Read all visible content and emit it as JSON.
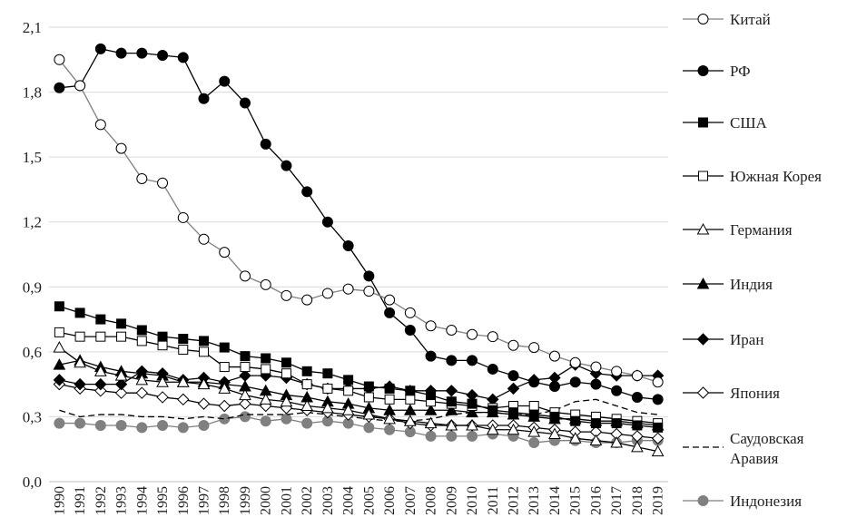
{
  "chart_data": {
    "type": "line",
    "title": "",
    "xlabel": "",
    "ylabel": "",
    "ylim": [
      0,
      2.1
    ],
    "yticks": [
      "0,0",
      "0,3",
      "0,6",
      "0,9",
      "1,2",
      "1,5",
      "1,8",
      "2,1"
    ],
    "grid": "horizontal",
    "legend": "right",
    "categories": [
      "1990",
      "1991",
      "1992",
      "1993",
      "1994",
      "1995",
      "1996",
      "1997",
      "1998",
      "1999",
      "2000",
      "2001",
      "2002",
      "2003",
      "2004",
      "2005",
      "2006",
      "2007",
      "2008",
      "2009",
      "2010",
      "2011",
      "2012",
      "2013",
      "2014",
      "2015",
      "2016",
      "2017",
      "2018",
      "2019"
    ],
    "series": [
      {
        "name": "Китай",
        "marker": "circle",
        "fill": "#ffffff",
        "stroke": "#000000",
        "line": "#808080",
        "dash": "",
        "values": [
          1.95,
          1.83,
          1.65,
          1.54,
          1.4,
          1.38,
          1.22,
          1.12,
          1.06,
          0.95,
          0.91,
          0.86,
          0.84,
          0.87,
          0.89,
          0.88,
          0.84,
          0.78,
          0.72,
          0.7,
          0.68,
          0.67,
          0.63,
          0.62,
          0.58,
          0.55,
          0.53,
          0.51,
          0.49,
          0.46
        ]
      },
      {
        "name": "РФ",
        "marker": "circle",
        "fill": "#000000",
        "stroke": "#000000",
        "line": "#000000",
        "dash": "",
        "values": [
          1.82,
          1.83,
          2.0,
          1.98,
          1.98,
          1.97,
          1.96,
          1.77,
          1.85,
          1.75,
          1.56,
          1.46,
          1.34,
          1.2,
          1.09,
          0.95,
          0.78,
          0.7,
          0.58,
          0.56,
          0.56,
          0.52,
          0.49,
          0.46,
          0.44,
          0.46,
          0.45,
          0.42,
          0.39,
          0.38
        ]
      },
      {
        "name": "США",
        "marker": "square",
        "fill": "#000000",
        "stroke": "#000000",
        "line": "#000000",
        "dash": "",
        "values": [
          0.81,
          0.78,
          0.75,
          0.73,
          0.7,
          0.67,
          0.66,
          0.65,
          0.62,
          0.58,
          0.57,
          0.55,
          0.51,
          0.5,
          0.47,
          0.44,
          0.43,
          0.42,
          0.4,
          0.37,
          0.36,
          0.33,
          0.32,
          0.31,
          0.3,
          0.28,
          0.27,
          0.27,
          0.26,
          0.25
        ]
      },
      {
        "name": "Южная Корея",
        "marker": "square",
        "fill": "#ffffff",
        "stroke": "#000000",
        "line": "#000000",
        "dash": "",
        "values": [
          0.69,
          0.67,
          0.67,
          0.67,
          0.65,
          0.63,
          0.61,
          0.6,
          0.53,
          0.53,
          0.52,
          0.5,
          0.45,
          0.43,
          0.42,
          0.39,
          0.38,
          0.38,
          0.37,
          0.36,
          0.35,
          0.34,
          0.35,
          0.35,
          0.32,
          0.31,
          0.3,
          0.29,
          0.28,
          0.27
        ]
      },
      {
        "name": "Германия",
        "marker": "triangle",
        "fill": "#ffffff",
        "stroke": "#000000",
        "line": "#000000",
        "dash": "",
        "values": [
          0.62,
          0.55,
          0.51,
          0.49,
          0.47,
          0.46,
          0.46,
          0.45,
          0.43,
          0.4,
          0.38,
          0.37,
          0.35,
          0.34,
          0.33,
          0.31,
          0.29,
          0.28,
          0.27,
          0.26,
          0.26,
          0.24,
          0.24,
          0.23,
          0.22,
          0.2,
          0.19,
          0.18,
          0.16,
          0.14
        ]
      },
      {
        "name": "Индия",
        "marker": "triangle",
        "fill": "#000000",
        "stroke": "#000000",
        "line": "#000000",
        "dash": "",
        "values": [
          0.54,
          0.56,
          0.53,
          0.51,
          0.5,
          0.49,
          0.46,
          0.46,
          0.45,
          0.44,
          0.42,
          0.4,
          0.39,
          0.37,
          0.36,
          0.34,
          0.33,
          0.33,
          0.33,
          0.33,
          0.32,
          0.32,
          0.31,
          0.3,
          0.29,
          0.29,
          0.28,
          0.28,
          0.27,
          0.26
        ]
      },
      {
        "name": "Иран",
        "marker": "diamond",
        "fill": "#000000",
        "stroke": "#000000",
        "line": "#000000",
        "dash": "",
        "values": [
          0.47,
          0.45,
          0.45,
          0.45,
          0.51,
          0.5,
          0.47,
          0.48,
          0.46,
          0.49,
          0.49,
          0.48,
          0.45,
          0.43,
          0.43,
          0.43,
          0.44,
          0.42,
          0.42,
          0.42,
          0.4,
          0.38,
          0.43,
          0.47,
          0.48,
          0.54,
          0.5,
          0.49,
          0.49,
          0.49
        ]
      },
      {
        "name": "Япония",
        "marker": "diamond",
        "fill": "#ffffff",
        "stroke": "#000000",
        "line": "#000000",
        "dash": "",
        "values": [
          0.45,
          0.43,
          0.42,
          0.41,
          0.41,
          0.39,
          0.38,
          0.36,
          0.35,
          0.36,
          0.35,
          0.34,
          0.33,
          0.32,
          0.31,
          0.3,
          0.29,
          0.27,
          0.26,
          0.26,
          0.26,
          0.26,
          0.26,
          0.25,
          0.24,
          0.23,
          0.23,
          0.22,
          0.21,
          0.2
        ]
      },
      {
        "name": "Саудовская Аравия",
        "marker": "none",
        "fill": "none",
        "stroke": "#000000",
        "line": "#000000",
        "dash": "7,4",
        "values": [
          0.33,
          0.3,
          0.31,
          0.31,
          0.3,
          0.3,
          0.29,
          0.3,
          0.29,
          0.31,
          0.31,
          0.31,
          0.32,
          0.31,
          0.3,
          0.29,
          0.28,
          0.28,
          0.29,
          0.31,
          0.32,
          0.32,
          0.31,
          0.31,
          0.33,
          0.37,
          0.38,
          0.35,
          0.32,
          0.31
        ]
      },
      {
        "name": "Индонезия",
        "marker": "circle",
        "fill": "#808080",
        "stroke": "#808080",
        "line": "#808080",
        "dash": "",
        "values": [
          0.27,
          0.27,
          0.26,
          0.26,
          0.25,
          0.26,
          0.25,
          0.26,
          0.29,
          0.3,
          0.28,
          0.29,
          0.27,
          0.28,
          0.27,
          0.25,
          0.24,
          0.23,
          0.21,
          0.21,
          0.21,
          0.22,
          0.21,
          0.18,
          0.19,
          0.19,
          0.18,
          0.18,
          0.19,
          0.19
        ]
      }
    ]
  }
}
